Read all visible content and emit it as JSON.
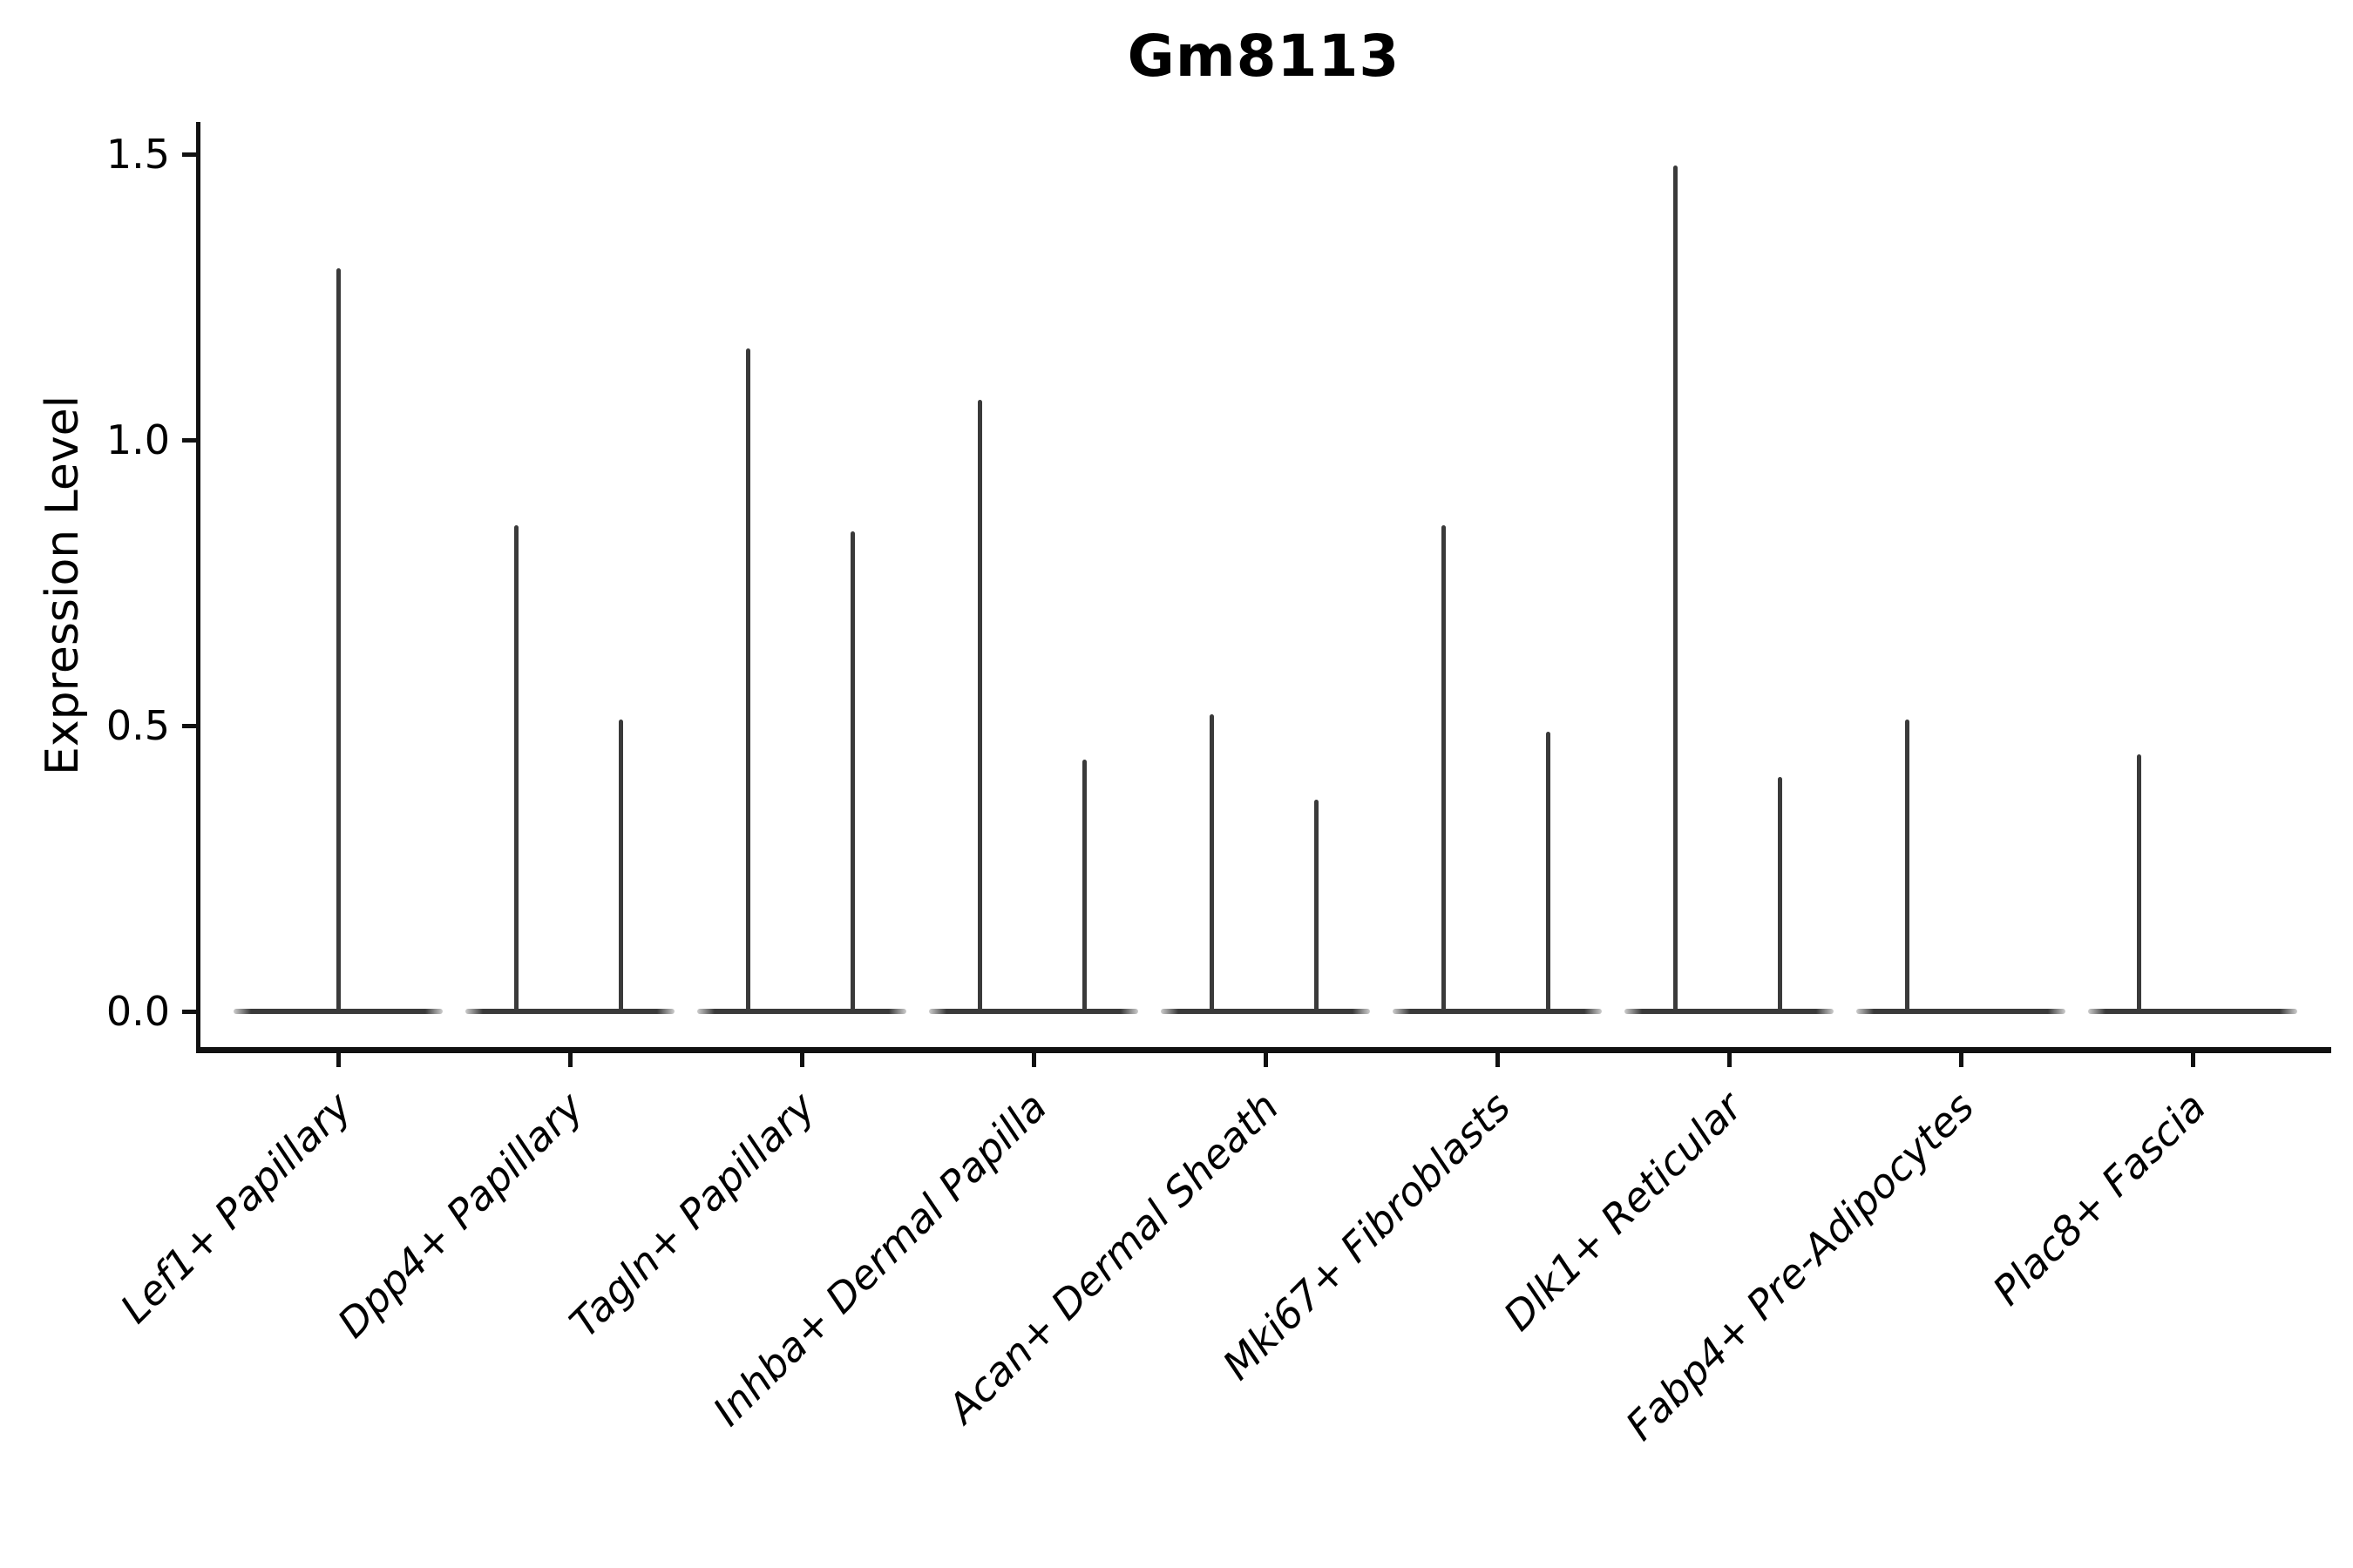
{
  "title": "Gm8113",
  "chart_data": {
    "type": "violin",
    "title": "Gm8113",
    "xlabel": "",
    "ylabel": "Expression Level",
    "ylim": [
      0,
      1.5
    ],
    "yticks": [
      0.0,
      0.5,
      1.0,
      1.5
    ],
    "ytick_labels": [
      "0.0",
      "0.5",
      "1.0",
      "1.5"
    ],
    "grid": false,
    "legend": "none",
    "xticklabel_rotation_deg": 45,
    "xticklabel_style": "italic",
    "categories": [
      "Lef1+ Papillary",
      "Dpp4+ Papillary",
      "Tagln+ Papillary",
      "Inhba+ Dermal Papilla",
      "Acan+ Dermal Sheath",
      "Mki67+ Fibroblasts",
      "Dlk1+ Reticular",
      "Fabp4+ Pre-Adipocytes",
      "Plac8+ Fascia"
    ],
    "violins": [
      {
        "category": "Lef1+ Papillary",
        "baseline_value": 0,
        "spikes": [
          {
            "pos": "center",
            "max": 1.3
          }
        ]
      },
      {
        "category": "Dpp4+ Papillary",
        "baseline_value": 0,
        "spikes": [
          {
            "pos": "left",
            "max": 0.85
          },
          {
            "pos": "right",
            "max": 0.51
          }
        ]
      },
      {
        "category": "Tagln+ Papillary",
        "baseline_value": 0,
        "spikes": [
          {
            "pos": "left",
            "max": 1.16
          },
          {
            "pos": "right",
            "max": 0.84
          }
        ]
      },
      {
        "category": "Inhba+ Dermal Papilla",
        "baseline_value": 0,
        "spikes": [
          {
            "pos": "left",
            "max": 1.07
          },
          {
            "pos": "right",
            "max": 0.44
          }
        ]
      },
      {
        "category": "Acan+ Dermal Sheath",
        "baseline_value": 0,
        "spikes": [
          {
            "pos": "left",
            "max": 0.52
          },
          {
            "pos": "right",
            "max": 0.37
          }
        ]
      },
      {
        "category": "Mki67+ Fibroblasts",
        "baseline_value": 0,
        "spikes": [
          {
            "pos": "left",
            "max": 0.85
          },
          {
            "pos": "right",
            "max": 0.49
          }
        ]
      },
      {
        "category": "Dlk1+ Reticular",
        "baseline_value": 0,
        "spikes": [
          {
            "pos": "left",
            "max": 1.48
          },
          {
            "pos": "right",
            "max": 0.41
          }
        ]
      },
      {
        "category": "Fabp4+ Pre-Adipocytes",
        "baseline_value": 0,
        "spikes": [
          {
            "pos": "left",
            "max": 0.51
          }
        ]
      },
      {
        "category": "Plac8+ Fascia",
        "baseline_value": 0,
        "spikes": [
          {
            "pos": "left",
            "max": 0.45
          }
        ]
      }
    ],
    "colors": {
      "violin_stroke": "#3a3a3a",
      "axis": "#111111",
      "text": "#000000",
      "background": "#ffffff"
    }
  }
}
